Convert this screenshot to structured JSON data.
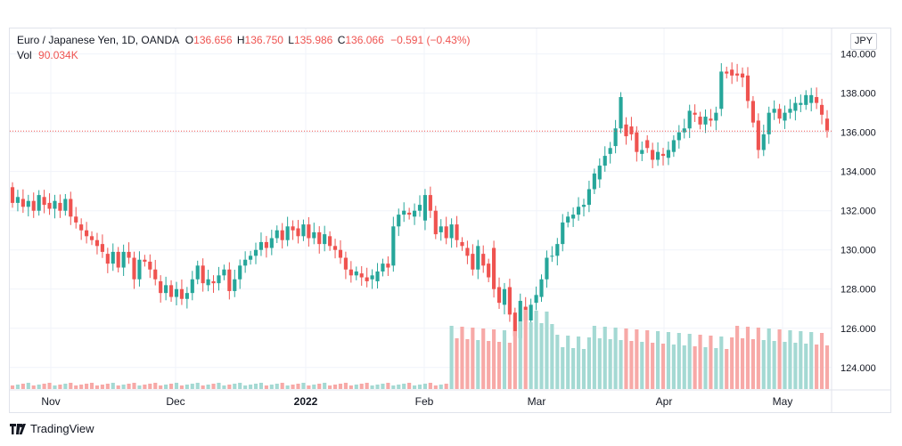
{
  "legend": {
    "symbol": "Euro / Japanese Yen, 1D, OANDA",
    "o_label": "O",
    "o_value": "136.656",
    "h_label": "H",
    "h_value": "136.750",
    "l_label": "L",
    "l_value": "135.986",
    "c_label": "C",
    "c_value": "136.066",
    "change": "−0.591 (−0.43%)",
    "vol_label": "Vol",
    "vol_value": "90.034K"
  },
  "currency_button": "JPY",
  "brand": "TradingView",
  "colors": {
    "up": "#26a69a",
    "down": "#ef5350",
    "vol_up": "#a4d9d3",
    "vol_down": "#f7a9a7",
    "grid": "#f0f3fa",
    "last_line": "#ef5350"
  },
  "chart_data": {
    "type": "candlestick",
    "title": "Euro / Japanese Yen, 1D, OANDA",
    "y_ticks": [
      "124.000",
      "126.000",
      "128.000",
      "130.000",
      "132.000",
      "134.000",
      "136.000",
      "138.000",
      "140.000"
    ],
    "ylim": [
      122.9,
      141.3
    ],
    "x_labels": [
      "Nov",
      "Dec",
      "2022",
      "Feb",
      "Mar",
      "Apr",
      "May"
    ],
    "last_price": 136.066,
    "candles": [
      [
        133.2,
        132.4
      ],
      [
        132.4,
        132.7
      ],
      [
        132.6,
        132.2
      ],
      [
        132.2,
        132.5
      ],
      [
        132.5,
        132.0
      ],
      [
        132.0,
        132.8
      ],
      [
        132.7,
        132.3
      ],
      [
        132.4,
        132.1
      ],
      [
        132.1,
        132.5
      ],
      [
        132.4,
        132.0
      ],
      [
        132.0,
        132.6
      ],
      [
        132.6,
        131.7
      ],
      [
        131.7,
        131.4
      ],
      [
        131.3,
        131.0
      ],
      [
        131.0,
        130.7
      ],
      [
        130.7,
        130.5
      ],
      [
        130.5,
        130.2
      ],
      [
        130.3,
        129.9
      ],
      [
        129.8,
        129.3
      ],
      [
        129.3,
        129.9
      ],
      [
        129.9,
        129.1
      ],
      [
        129.1,
        129.9
      ],
      [
        129.9,
        129.6
      ],
      [
        129.6,
        128.5
      ],
      [
        128.5,
        129.5
      ],
      [
        129.5,
        129.4
      ],
      [
        129.4,
        129.0
      ],
      [
        129.0,
        128.5
      ],
      [
        128.4,
        127.8
      ],
      [
        127.8,
        128.2
      ],
      [
        128.2,
        127.6
      ],
      [
        127.6,
        128.0
      ],
      [
        128.0,
        127.5
      ],
      [
        127.5,
        127.8
      ],
      [
        127.8,
        128.5
      ],
      [
        128.5,
        129.2
      ],
      [
        129.2,
        128.3
      ],
      [
        128.2,
        128.5
      ],
      [
        128.4,
        128.3
      ],
      [
        128.3,
        128.7
      ],
      [
        128.7,
        129.0
      ],
      [
        129.0,
        127.9
      ],
      [
        127.9,
        128.5
      ],
      [
        128.5,
        129.2
      ],
      [
        129.2,
        129.5
      ],
      [
        129.5,
        129.7
      ],
      [
        129.7,
        130.0
      ],
      [
        130.0,
        130.4
      ],
      [
        130.4,
        130.1
      ],
      [
        130.1,
        130.6
      ],
      [
        130.6,
        131.0
      ],
      [
        131.0,
        130.5
      ],
      [
        130.5,
        131.2
      ],
      [
        131.2,
        131.0
      ],
      [
        131.1,
        130.7
      ],
      [
        130.7,
        131.3
      ],
      [
        131.3,
        130.6
      ],
      [
        130.6,
        130.9
      ],
      [
        130.9,
        130.3
      ],
      [
        130.3,
        130.8
      ],
      [
        130.7,
        130.2
      ],
      [
        130.2,
        130.0
      ],
      [
        130.0,
        129.6
      ],
      [
        129.6,
        129.0
      ],
      [
        129.0,
        128.7
      ],
      [
        128.7,
        128.9
      ],
      [
        128.8,
        128.6
      ],
      [
        128.6,
        128.4
      ],
      [
        128.5,
        128.7
      ],
      [
        128.4,
        128.9
      ],
      [
        128.9,
        129.3
      ],
      [
        129.3,
        129.1
      ],
      [
        129.2,
        131.2
      ],
      [
        131.2,
        131.8
      ],
      [
        131.8,
        132.0
      ],
      [
        131.9,
        131.8
      ],
      [
        131.7,
        132.0
      ],
      [
        132.0,
        132.3
      ],
      [
        131.5,
        132.8
      ],
      [
        132.8,
        132.0
      ],
      [
        132.0,
        130.8
      ],
      [
        130.9,
        131.2
      ],
      [
        131.2,
        130.6
      ],
      [
        130.6,
        131.3
      ],
      [
        131.3,
        130.5
      ],
      [
        130.4,
        130.2
      ],
      [
        130.1,
        129.7
      ],
      [
        129.8,
        129.0
      ],
      [
        129.0,
        130.2
      ],
      [
        129.8,
        129.2
      ],
      [
        129.3,
        128.6
      ],
      [
        130.1,
        128.0
      ],
      [
        128.1,
        127.3
      ],
      [
        127.2,
        128.0
      ],
      [
        128.1,
        126.7
      ],
      [
        126.8,
        125.6
      ],
      [
        125.5,
        127.4
      ],
      [
        127.1,
        126.4
      ],
      [
        126.4,
        127.2
      ],
      [
        127.3,
        127.7
      ],
      [
        127.6,
        128.5
      ],
      [
        128.5,
        129.6
      ],
      [
        129.7,
        129.7
      ],
      [
        129.7,
        130.3
      ],
      [
        130.3,
        131.4
      ],
      [
        131.4,
        131.7
      ],
      [
        131.6,
        131.8
      ],
      [
        131.8,
        132.2
      ],
      [
        132.2,
        132.3
      ],
      [
        132.3,
        133.1
      ],
      [
        133.1,
        133.9
      ],
      [
        133.6,
        134.3
      ],
      [
        134.3,
        134.8
      ],
      [
        134.9,
        135.2
      ],
      [
        135.3,
        136.2
      ],
      [
        136.2,
        137.8
      ],
      [
        136.4,
        135.8
      ],
      [
        136.3,
        135.9
      ],
      [
        136.0,
        135.0
      ],
      [
        134.9,
        135.1
      ],
      [
        135.6,
        135.2
      ],
      [
        135.1,
        134.6
      ],
      [
        134.6,
        135.0
      ],
      [
        134.9,
        134.8
      ],
      [
        134.7,
        135.1
      ],
      [
        135.0,
        135.6
      ],
      [
        135.6,
        136.0
      ],
      [
        136.0,
        136.2
      ],
      [
        136.2,
        137.1
      ],
      [
        137.0,
        136.9
      ],
      [
        136.8,
        136.4
      ],
      [
        136.4,
        136.8
      ],
      [
        136.7,
        136.6
      ],
      [
        136.6,
        137.0
      ],
      [
        137.2,
        139.1
      ],
      [
        139.1,
        139.0
      ],
      [
        139.2,
        138.9
      ],
      [
        139.0,
        138.9
      ],
      [
        139.0,
        138.8
      ],
      [
        138.9,
        137.6
      ],
      [
        137.6,
        136.5
      ],
      [
        136.6,
        135.1
      ],
      [
        135.1,
        135.9
      ],
      [
        135.9,
        137.0
      ],
      [
        137.0,
        137.2
      ],
      [
        137.2,
        136.7
      ],
      [
        136.6,
        137.0
      ],
      [
        137.0,
        137.2
      ],
      [
        137.1,
        137.5
      ],
      [
        137.4,
        137.5
      ],
      [
        137.4,
        137.9
      ],
      [
        137.5,
        137.9
      ],
      [
        137.8,
        137.5
      ],
      [
        137.4,
        136.9
      ],
      [
        136.7,
        136.1
      ]
    ],
    "volume_scale_k": [
      0,
      500
    ]
  }
}
